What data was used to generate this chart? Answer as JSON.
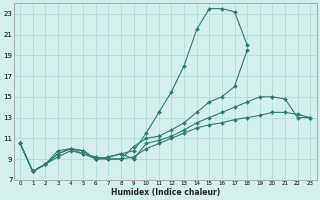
{
  "xlabel": "Humidex (Indice chaleur)",
  "bg_color": "#d4f0ec",
  "grid_color": "#b0d8d4",
  "line_color": "#2e7d6e",
  "series": [
    {
      "x": [
        0,
        1,
        2,
        3,
        4,
        5,
        6,
        7,
        8,
        9,
        10,
        11,
        12,
        13,
        14,
        15,
        16,
        17,
        18
      ],
      "y": [
        10.5,
        7.8,
        8.5,
        9.8,
        10.0,
        9.8,
        9.0,
        9.2,
        9.5,
        9.8,
        11.5,
        13.5,
        15.5,
        18.0,
        21.5,
        23.5,
        23.5,
        23.2,
        20.0
      ]
    },
    {
      "x": [
        0,
        1,
        2,
        3,
        4,
        5,
        6,
        7,
        8,
        9,
        10,
        11,
        12,
        13,
        14,
        15,
        16,
        17,
        18,
        19,
        20,
        21,
        22,
        23
      ],
      "y": [
        10.5,
        7.8,
        8.5,
        9.5,
        10.0,
        9.8,
        9.0,
        9.2,
        9.5,
        9.0,
        10.5,
        10.8,
        11.2,
        11.8,
        12.5,
        13.0,
        13.5,
        14.0,
        14.5,
        15.0,
        15.0,
        14.8,
        13.0,
        13.0
      ]
    },
    {
      "x": [
        0,
        1,
        2,
        3,
        4,
        5,
        6,
        7,
        8,
        9,
        10,
        11,
        12,
        13,
        14,
        15,
        16,
        17,
        18
      ],
      "y": [
        10.5,
        7.8,
        8.5,
        9.5,
        10.0,
        9.5,
        9.2,
        9.0,
        9.0,
        10.2,
        11.0,
        11.2,
        11.8,
        12.5,
        13.5,
        14.5,
        15.0,
        16.0,
        19.5
      ]
    },
    {
      "x": [
        0,
        1,
        2,
        3,
        4,
        5,
        6,
        7,
        8,
        9,
        10,
        11,
        12,
        13,
        14,
        15,
        16,
        17,
        18,
        19,
        20,
        21,
        22,
        23
      ],
      "y": [
        10.5,
        7.8,
        8.5,
        9.2,
        9.8,
        9.5,
        9.0,
        9.0,
        9.0,
        9.2,
        10.0,
        10.5,
        11.0,
        11.5,
        12.0,
        12.3,
        12.5,
        12.8,
        13.0,
        13.2,
        13.5,
        13.5,
        13.3,
        13.0
      ]
    }
  ],
  "xlim": [
    -0.5,
    23.5
  ],
  "ylim": [
    7,
    24
  ],
  "xticks": [
    0,
    1,
    2,
    3,
    4,
    5,
    6,
    7,
    8,
    9,
    10,
    11,
    12,
    13,
    14,
    15,
    16,
    17,
    18,
    19,
    20,
    21,
    22,
    23
  ],
  "yticks": [
    7,
    9,
    11,
    13,
    15,
    17,
    19,
    21,
    23
  ],
  "marker": "D",
  "markersize": 2.0,
  "linewidth": 0.8
}
